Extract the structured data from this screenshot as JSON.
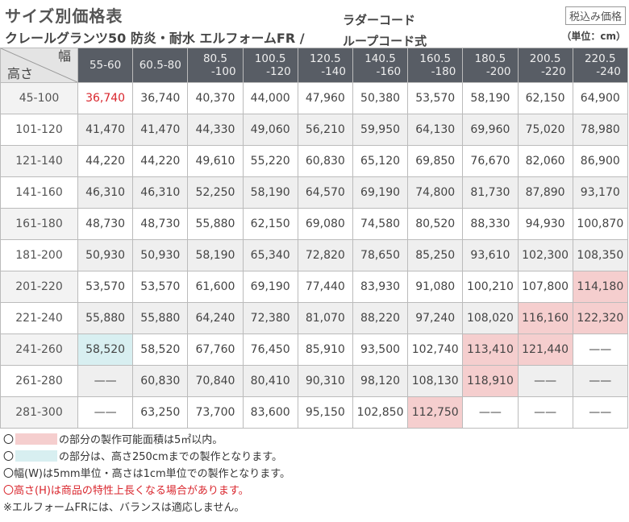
{
  "header": {
    "title": "サイズ別価格表",
    "subtitle": "クレールグランツ50 防炎・耐水 エルフォームFR /",
    "cord": "ラダーコード",
    "cord2": "ループコード式",
    "tax_badge": "税込み価格",
    "unit": "（単位：cm）"
  },
  "table": {
    "corner_width": "幅",
    "corner_height": "高さ",
    "columns": [
      [
        "55-60",
        ""
      ],
      [
        "60.5-80",
        ""
      ],
      [
        "80.5",
        "-100"
      ],
      [
        "100.5",
        "-120"
      ],
      [
        "120.5",
        "-140"
      ],
      [
        "140.5",
        "-160"
      ],
      [
        "160.5",
        "-180"
      ],
      [
        "180.5",
        "-200"
      ],
      [
        "200.5",
        "-220"
      ],
      [
        "220.5",
        "-240"
      ]
    ],
    "rows": [
      {
        "h": "45-100",
        "v": [
          "36,740",
          "36,740",
          "40,370",
          "44,000",
          "47,960",
          "50,380",
          "53,570",
          "58,190",
          "62,150",
          "64,900"
        ]
      },
      {
        "h": "101-120",
        "v": [
          "41,470",
          "41,470",
          "44,330",
          "49,060",
          "56,210",
          "59,950",
          "64,130",
          "69,960",
          "75,020",
          "78,980"
        ]
      },
      {
        "h": "121-140",
        "v": [
          "44,220",
          "44,220",
          "49,610",
          "55,220",
          "60,830",
          "65,120",
          "69,850",
          "76,670",
          "82,060",
          "86,900"
        ]
      },
      {
        "h": "141-160",
        "v": [
          "46,310",
          "46,310",
          "52,250",
          "58,190",
          "64,570",
          "69,190",
          "74,800",
          "81,730",
          "87,890",
          "93,170"
        ]
      },
      {
        "h": "161-180",
        "v": [
          "48,730",
          "48,730",
          "55,880",
          "62,150",
          "69,080",
          "74,580",
          "80,520",
          "88,330",
          "94,930",
          "100,870"
        ]
      },
      {
        "h": "181-200",
        "v": [
          "50,930",
          "50,930",
          "58,190",
          "65,340",
          "72,820",
          "78,650",
          "85,250",
          "93,610",
          "102,300",
          "108,350"
        ]
      },
      {
        "h": "201-220",
        "v": [
          "53,570",
          "53,570",
          "61,600",
          "69,190",
          "77,440",
          "83,930",
          "91,080",
          "100,210",
          "107,800",
          "114,180"
        ]
      },
      {
        "h": "221-240",
        "v": [
          "55,880",
          "55,880",
          "64,240",
          "72,380",
          "81,070",
          "88,220",
          "97,240",
          "108,020",
          "116,160",
          "122,320"
        ]
      },
      {
        "h": "241-260",
        "v": [
          "58,520",
          "58,520",
          "67,760",
          "76,450",
          "85,910",
          "93,500",
          "102,740",
          "113,410",
          "121,440",
          "——"
        ]
      },
      {
        "h": "261-280",
        "v": [
          "——",
          "60,830",
          "70,840",
          "80,410",
          "90,310",
          "98,120",
          "108,130",
          "118,910",
          "——",
          "——"
        ]
      },
      {
        "h": "281-300",
        "v": [
          "——",
          "63,250",
          "73,700",
          "83,600",
          "95,150",
          "102,850",
          "112,750",
          "——",
          "——",
          "——"
        ]
      }
    ],
    "highlight_pink": [
      [
        6,
        9
      ],
      [
        7,
        8
      ],
      [
        7,
        9
      ],
      [
        8,
        7
      ],
      [
        8,
        8
      ],
      [
        9,
        7
      ],
      [
        10,
        6
      ]
    ],
    "highlight_blue": [
      [
        8,
        0
      ]
    ],
    "highlight_red_text": [
      [
        0,
        0
      ]
    ],
    "colors": {
      "header_bg": "#585d65",
      "pink": "#f5cece",
      "blue": "#d8eff1",
      "red": "#d9262d"
    }
  },
  "notes": {
    "n1_pre": "〇",
    "n1_post": "の部分の製作可能面積は5㎡以内。",
    "n2_pre": "〇",
    "n2_post": "の部分は、高さ250cmまでの製作となります。",
    "n3": "〇幅(W)は5mm単位・高さは1cm単位での製作となります。",
    "n4": "〇高さ(H)は商品の特性上長くなる場合があります。",
    "n5": "※エルフォームFRには、バランスは適応しません。"
  }
}
